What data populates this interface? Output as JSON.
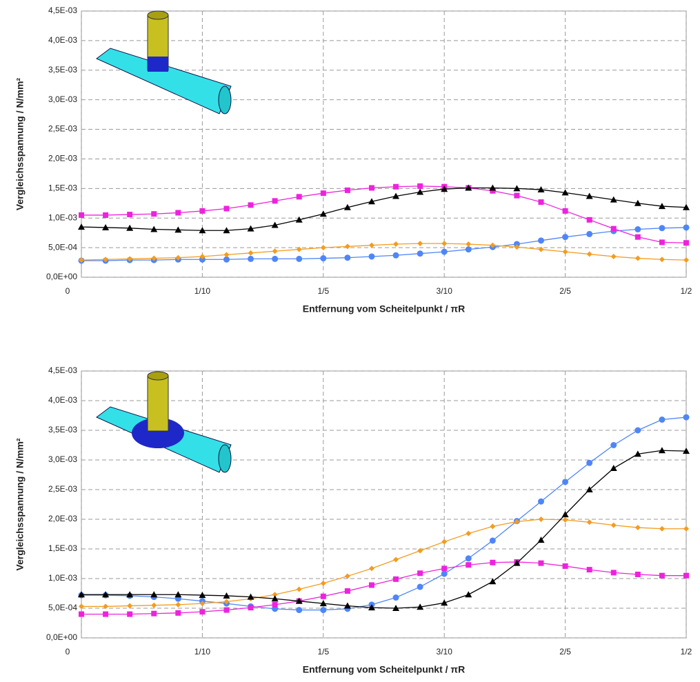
{
  "chart_data": [
    {
      "type": "line",
      "x_label": "Entfernung vom Scheitelpunkt   / πR",
      "y_label": "Vergleichsspannung  / N/mm²",
      "x": [
        0,
        0.02,
        0.04,
        0.06,
        0.08,
        0.1,
        0.12,
        0.14,
        0.16,
        0.18,
        0.2,
        0.22,
        0.24,
        0.26,
        0.28,
        0.3,
        0.32,
        0.34,
        0.36,
        0.38,
        0.4,
        0.42,
        0.44,
        0.46,
        0.48,
        0.5
      ],
      "xlim": [
        0,
        0.5
      ],
      "ylim": [
        0,
        0.0045
      ],
      "grid": true,
      "xticks": [
        0,
        {
          "value": 0.1,
          "label": "1/10"
        },
        {
          "value": 0.2,
          "label": "1/5"
        },
        {
          "value": 0.3,
          "label": "3/10"
        },
        {
          "value": 0.4,
          "label": "2/5"
        },
        {
          "value": 0.5,
          "label": "1/2"
        }
      ],
      "yticks": [
        {
          "value": 0,
          "label": "0,0E+00"
        },
        {
          "value": 0.0005,
          "label": "5,0E-04"
        },
        {
          "value": 0.001,
          "label": "1,0E-03"
        },
        {
          "value": 0.0015,
          "label": "1,5E-03"
        },
        {
          "value": 0.002,
          "label": "2,0E-03"
        },
        {
          "value": 0.0025,
          "label": "2,5E-03"
        },
        {
          "value": 0.003,
          "label": "3,0E-03"
        },
        {
          "value": 0.0035,
          "label": "3,5E-03"
        },
        {
          "value": 0.004,
          "label": "4,0E-03"
        },
        {
          "value": 0.0045,
          "label": "4,5E-03"
        }
      ],
      "series": [
        {
          "color": "#4f86f7",
          "marker": "circle",
          "values": [
            0.00028,
            0.00028,
            0.00029,
            0.00029,
            0.0003,
            0.0003,
            0.0003,
            0.00031,
            0.00031,
            0.00031,
            0.00032,
            0.00033,
            0.00035,
            0.00037,
            0.0004,
            0.00043,
            0.00047,
            0.00051,
            0.00056,
            0.00062,
            0.00068,
            0.00073,
            0.00078,
            0.00081,
            0.00083,
            0.00084
          ]
        },
        {
          "color": "#f39c1f",
          "marker": "diamond",
          "values": [
            0.00029,
            0.0003,
            0.00031,
            0.00032,
            0.00033,
            0.00035,
            0.00038,
            0.00041,
            0.00044,
            0.00047,
            0.0005,
            0.00052,
            0.00054,
            0.00056,
            0.00057,
            0.00057,
            0.00056,
            0.00054,
            0.00051,
            0.00047,
            0.00043,
            0.00039,
            0.00035,
            0.00032,
            0.0003,
            0.00029
          ]
        },
        {
          "color": "#ee22dd",
          "marker": "square",
          "values": [
            0.00105,
            0.00105,
            0.00106,
            0.00107,
            0.00109,
            0.00112,
            0.00116,
            0.00122,
            0.00129,
            0.00136,
            0.00142,
            0.00147,
            0.00151,
            0.00153,
            0.00154,
            0.00153,
            0.00151,
            0.00146,
            0.00138,
            0.00127,
            0.00112,
            0.00097,
            0.00082,
            0.00068,
            0.00059,
            0.00058
          ]
        },
        {
          "color": "#000000",
          "marker": "triangle",
          "values": [
            0.00085,
            0.00084,
            0.00083,
            0.00081,
            0.0008,
            0.00079,
            0.00079,
            0.00082,
            0.00088,
            0.00097,
            0.00107,
            0.00118,
            0.00128,
            0.00137,
            0.00144,
            0.00149,
            0.00151,
            0.00151,
            0.0015,
            0.00148,
            0.00143,
            0.00137,
            0.00131,
            0.00125,
            0.0012,
            0.00118
          ]
        }
      ]
    },
    {
      "type": "line",
      "x_label": "Entfernung vom Scheitelpunkt   / πR",
      "y_label": "Vergleichsspannung  / N/mm²",
      "x": [
        0,
        0.02,
        0.04,
        0.06,
        0.08,
        0.1,
        0.12,
        0.14,
        0.16,
        0.18,
        0.2,
        0.22,
        0.24,
        0.26,
        0.28,
        0.3,
        0.32,
        0.34,
        0.36,
        0.38,
        0.4,
        0.42,
        0.44,
        0.46,
        0.48,
        0.5
      ],
      "xlim": [
        0,
        0.5
      ],
      "ylim": [
        0,
        0.0045
      ],
      "grid": true,
      "xticks": [
        0,
        {
          "value": 0.1,
          "label": "1/10"
        },
        {
          "value": 0.2,
          "label": "1/5"
        },
        {
          "value": 0.3,
          "label": "3/10"
        },
        {
          "value": 0.4,
          "label": "2/5"
        },
        {
          "value": 0.5,
          "label": "1/2"
        }
      ],
      "yticks": [
        {
          "value": 0,
          "label": "0,0E+00"
        },
        {
          "value": 0.0005,
          "label": "5,0E-04"
        },
        {
          "value": 0.001,
          "label": "1,0E-03"
        },
        {
          "value": 0.0015,
          "label": "1,5E-03"
        },
        {
          "value": 0.002,
          "label": "2,0E-03"
        },
        {
          "value": 0.0025,
          "label": "2,5E-03"
        },
        {
          "value": 0.003,
          "label": "3,0E-03"
        },
        {
          "value": 0.0035,
          "label": "3,5E-03"
        },
        {
          "value": 0.004,
          "label": "4,0E-03"
        },
        {
          "value": 0.0045,
          "label": "4,5E-03"
        }
      ],
      "series": [
        {
          "color": "#4f86f7",
          "marker": "circle",
          "values": [
            0.00072,
            0.00072,
            0.00071,
            0.00069,
            0.00066,
            0.00062,
            0.00058,
            0.00053,
            0.00049,
            0.00047,
            0.00047,
            0.00049,
            0.00056,
            0.00068,
            0.00086,
            0.00108,
            0.00134,
            0.00164,
            0.00197,
            0.0023,
            0.00263,
            0.00295,
            0.00325,
            0.0035,
            0.00368,
            0.00372
          ]
        },
        {
          "color": "#f39c1f",
          "marker": "diamond",
          "values": [
            0.00053,
            0.00053,
            0.00054,
            0.00055,
            0.00056,
            0.00058,
            0.00061,
            0.00066,
            0.00073,
            0.00082,
            0.00092,
            0.00104,
            0.00117,
            0.00132,
            0.00147,
            0.00162,
            0.00176,
            0.00188,
            0.00196,
            0.002,
            0.00199,
            0.00195,
            0.0019,
            0.00186,
            0.00184,
            0.00184
          ]
        },
        {
          "color": "#ee22dd",
          "marker": "square",
          "values": [
            0.0004,
            0.0004,
            0.0004,
            0.00041,
            0.00042,
            0.00044,
            0.00047,
            0.00051,
            0.00056,
            0.00062,
            0.0007,
            0.00079,
            0.00089,
            0.00099,
            0.00109,
            0.00117,
            0.00123,
            0.00127,
            0.00128,
            0.00126,
            0.00121,
            0.00115,
            0.0011,
            0.00107,
            0.00105,
            0.00105
          ]
        },
        {
          "color": "#000000",
          "marker": "triangle",
          "values": [
            0.00073,
            0.00073,
            0.00073,
            0.00073,
            0.00073,
            0.00072,
            0.00071,
            0.00069,
            0.00066,
            0.00062,
            0.00058,
            0.00054,
            0.00051,
            0.0005,
            0.00052,
            0.00059,
            0.00073,
            0.00095,
            0.00126,
            0.00165,
            0.00208,
            0.0025,
            0.00286,
            0.0031,
            0.00316,
            0.00315
          ]
        }
      ]
    }
  ]
}
